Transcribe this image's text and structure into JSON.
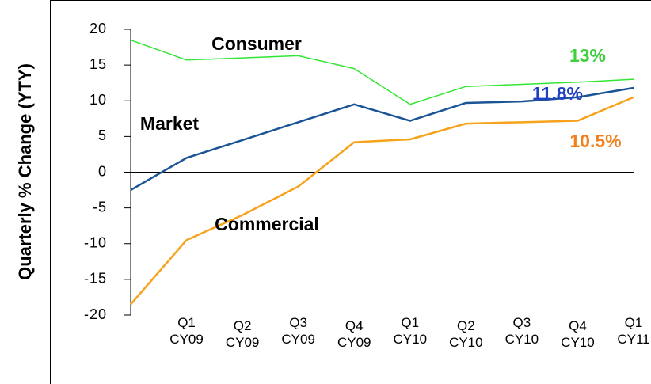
{
  "chart_data": {
    "type": "line",
    "ylabel": "Quarterly % Change (YTY)",
    "categories": [
      null,
      "Q1 CY09",
      "Q2 CY09",
      "Q3 CY09",
      "Q4 CY09",
      "Q1 CY10",
      "Q2 CY10",
      "Q3 CY10",
      "Q4 CY10",
      "Q1 CY11"
    ],
    "series": [
      {
        "name": "Consumer",
        "color": "#33e633",
        "values": [
          18.5,
          15.7,
          16.0,
          16.3,
          14.5,
          9.5,
          12.0,
          12.3,
          12.6,
          13.0
        ]
      },
      {
        "name": "Market",
        "color": "#1b5496",
        "values": [
          -2.5,
          2.0,
          4.5,
          7.0,
          9.5,
          7.2,
          9.7,
          9.9,
          10.5,
          11.8
        ]
      },
      {
        "name": "Commercial",
        "color": "#f7a21b",
        "values": [
          -18.5,
          -9.5,
          -6.0,
          -2.0,
          4.2,
          4.6,
          6.8,
          7.0,
          7.2,
          10.5
        ]
      }
    ],
    "annotations": [
      {
        "text": "13%",
        "color": "#3fcf3f"
      },
      {
        "text": "11.8%",
        "color": "#1f3fc4"
      },
      {
        "text": "10.5%",
        "color": "#f0801c"
      }
    ],
    "ylim": [
      -20,
      20
    ],
    "yticks": [
      -20,
      -15,
      -10,
      -5,
      0,
      5,
      10,
      15,
      20
    ]
  }
}
